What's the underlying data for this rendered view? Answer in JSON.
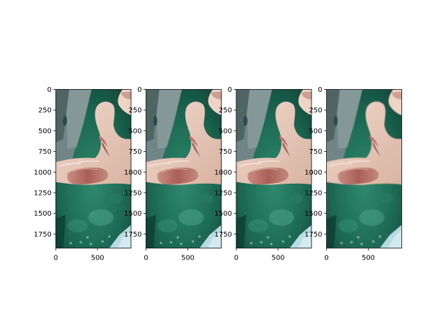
{
  "chart_data": [
    {
      "type": "image",
      "image_size": [
        900,
        1920
      ],
      "xlim": [
        0,
        900
      ],
      "ylim": [
        1920,
        0
      ],
      "xticks": [
        0,
        500
      ],
      "yticks": [
        0,
        250,
        500,
        750,
        1000,
        1250,
        1500,
        1750
      ],
      "title": "",
      "xlabel": "",
      "ylabel": "",
      "image_description": "photo of a hand on a green surface, sharp",
      "colors": {
        "background": "#3d6e5f",
        "surface": "#1f6b55",
        "skin": "#e3c2b2",
        "wound": "#b06a60"
      }
    },
    {
      "type": "image",
      "image_size": [
        900,
        1920
      ],
      "xlim": [
        0,
        900
      ],
      "ylim": [
        1920,
        0
      ],
      "xticks": [
        0,
        500
      ],
      "yticks": [
        0,
        250,
        500,
        750,
        1000,
        1250,
        1500,
        1750
      ],
      "title": "",
      "xlabel": "",
      "ylabel": "",
      "image_description": "photo of a hand on a green surface, slightly smoothed",
      "colors": {
        "background": "#3d6e5f",
        "surface": "#1f6b55",
        "skin": "#e3c2b2",
        "wound": "#b06a60"
      }
    },
    {
      "type": "image",
      "image_size": [
        900,
        1920
      ],
      "xlim": [
        0,
        900
      ],
      "ylim": [
        1920,
        0
      ],
      "xticks": [
        0,
        500
      ],
      "yticks": [
        0,
        250,
        500,
        750,
        1000,
        1250,
        1500,
        1750
      ],
      "title": "",
      "xlabel": "",
      "ylabel": "",
      "image_description": "photo of a hand on a green surface, moderately blurred",
      "colors": {
        "background": "#3d6e5f",
        "surface": "#1f6b55",
        "skin": "#e3c2b2",
        "wound": "#b06a60"
      }
    },
    {
      "type": "image",
      "image_size": [
        900,
        1920
      ],
      "xlim": [
        0,
        900
      ],
      "ylim": [
        1920,
        0
      ],
      "xticks": [
        0,
        500
      ],
      "yticks": [
        0,
        250,
        500,
        750,
        1000,
        1250,
        1500,
        1750
      ],
      "title": "",
      "xlabel": "",
      "ylabel": "",
      "image_description": "photo of a hand on a green surface, strongly blurred",
      "colors": {
        "background": "#3d6e5f",
        "surface": "#1f6b55",
        "skin": "#e3c2b2",
        "wound": "#b06a60"
      }
    }
  ]
}
